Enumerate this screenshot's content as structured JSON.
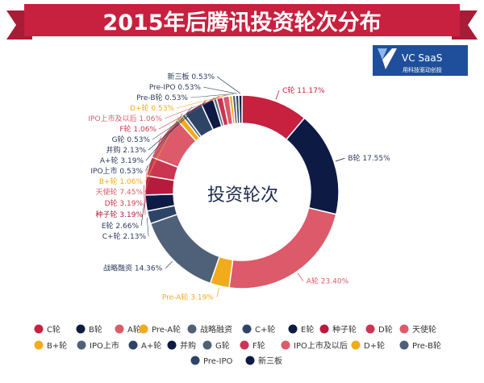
{
  "title": "2015年后腾讯投资轮次分布",
  "logo": {
    "name": "VC SaaS",
    "tagline": "用科技驱动创投"
  },
  "chart_data": {
    "type": "donut",
    "title": "2015年后腾讯投资轮次分布",
    "center_label": "投资轮次",
    "unit": "%",
    "slices": [
      {
        "name": "C轮",
        "value": 11.17,
        "label": "C轮 11.17%",
        "color": "#c8203f"
      },
      {
        "name": "B轮",
        "value": 17.55,
        "label": "B轮 17.55%",
        "color": "#0d1b44"
      },
      {
        "name": "A轮",
        "value": 23.4,
        "label": "A轮 23.40%",
        "color": "#dc5a6a"
      },
      {
        "name": "Pre-A轮",
        "value": 3.19,
        "label": "Pre-A轮 3.19%",
        "color": "#f2ab1c"
      },
      {
        "name": "战略融资",
        "value": 14.36,
        "label": "战略融资 14.36%",
        "color": "#4f6178"
      },
      {
        "name": "C+轮",
        "value": 2.13,
        "label": "C+轮 2.13%",
        "color": "#2d4466"
      },
      {
        "name": "E轮",
        "value": 2.66,
        "label": "E轮 2.66%",
        "color": "#0d1b44"
      },
      {
        "name": "种子轮",
        "value": 3.19,
        "label": "种子轮 3.19%",
        "color": "#b81a3e"
      },
      {
        "name": "D轮",
        "value": 3.19,
        "label": "D轮 3.19%",
        "color": "#cc3551"
      },
      {
        "name": "天使轮",
        "value": 7.45,
        "label": "天使轮 7.45%",
        "color": "#dc5a6a"
      },
      {
        "name": "B+轮",
        "value": 1.06,
        "label": "B+轮 1.06%",
        "color": "#f2ab1c"
      },
      {
        "name": "IPO上市",
        "value": 0.53,
        "label": "IPO上市 0.53%",
        "color": "#4f6178"
      },
      {
        "name": "A+轮",
        "value": 3.19,
        "label": "A+轮 3.19%",
        "color": "#2d4466"
      },
      {
        "name": "并购",
        "value": 2.13,
        "label": "并购 2.13%",
        "color": "#0d1b44"
      },
      {
        "name": "G轮",
        "value": 0.53,
        "label": "G轮 0.53%",
        "color": "#4f6178"
      },
      {
        "name": "F轮",
        "value": 1.06,
        "label": "F轮 1.06%",
        "color": "#cc3551"
      },
      {
        "name": "IPO上市及以后",
        "value": 1.06,
        "label": "IPO上市及以后 1.06%",
        "color": "#dc5a6a"
      },
      {
        "name": "D+轮",
        "value": 0.53,
        "label": "D+轮 0.53%",
        "color": "#f2ab1c"
      },
      {
        "name": "Pre-B轮",
        "value": 0.53,
        "label": "Pre-B轮 0.53%",
        "color": "#4f6178"
      },
      {
        "name": "Pre-IPO",
        "value": 0.53,
        "label": "Pre-IPO 0.53%",
        "color": "#2d4466"
      },
      {
        "name": "新三板",
        "value": 0.53,
        "label": "新三板 0.53%",
        "color": "#0d1b44"
      }
    ],
    "legend": [
      "C轮",
      "B轮",
      "A轮",
      "Pre-A轮",
      "战略融资",
      "C+轮",
      "E轮",
      "种子轮",
      "D轮",
      "天使轮",
      "B+轮",
      "IPO上市",
      "A+轮",
      "并购",
      "G轮",
      "F轮",
      "IPO上市及以后",
      "D+轮",
      "Pre-B轮",
      "Pre-IPO",
      "新三板"
    ]
  }
}
